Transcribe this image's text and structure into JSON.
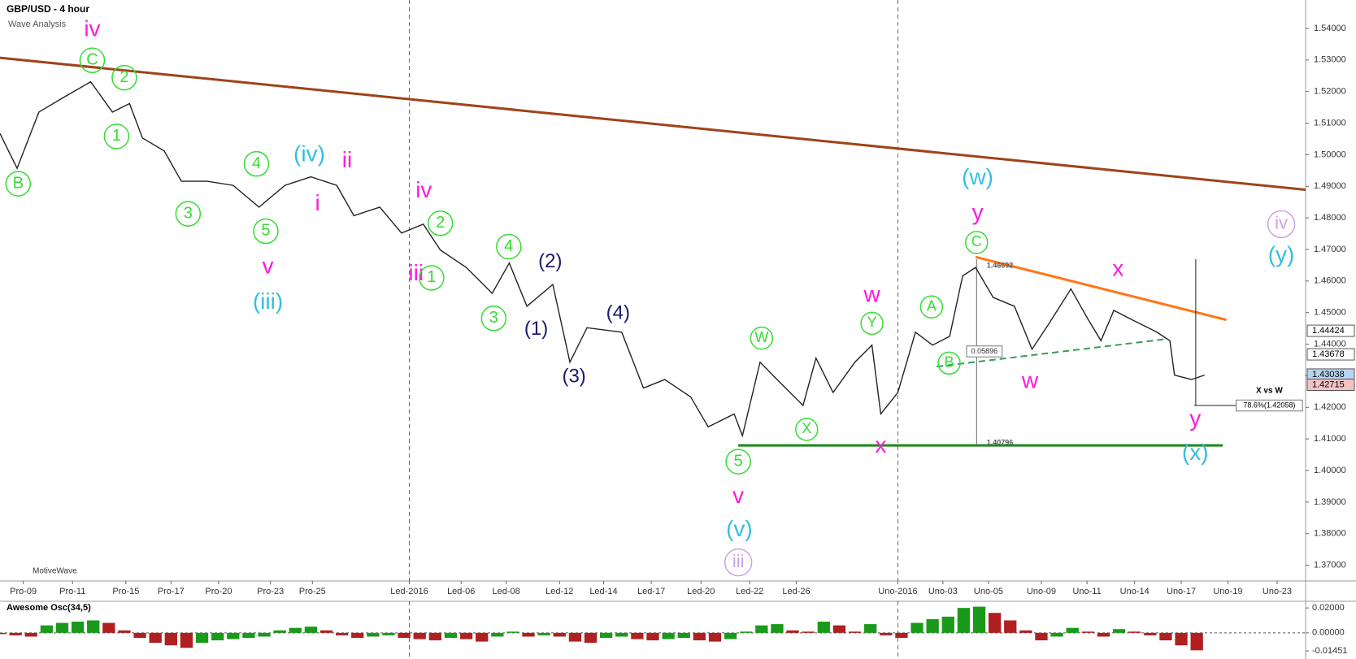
{
  "chart_data": {
    "type": "line",
    "title": "GBP/USD - 4 hour",
    "subtitle": "Wave Analysis",
    "watermark": "MotiveWave",
    "xlim": [
      0,
      252
    ],
    "xticks": [
      {
        "value": 4.5,
        "label": "Pro-09"
      },
      {
        "value": 14,
        "label": "Pro-11"
      },
      {
        "value": 24.3,
        "label": "Pro-15"
      },
      {
        "value": 33,
        "label": "Pro-17"
      },
      {
        "value": 42.2,
        "label": "Pro-20"
      },
      {
        "value": 52.2,
        "label": "Pro-23"
      },
      {
        "value": 60.3,
        "label": "Pro-25"
      },
      {
        "value": 79,
        "label": "Led-2016"
      },
      {
        "value": 89,
        "label": "Led-06"
      },
      {
        "value": 97.7,
        "label": "Led-08"
      },
      {
        "value": 108,
        "label": "Led-12"
      },
      {
        "value": 116.5,
        "label": "Led-14"
      },
      {
        "value": 125.7,
        "label": "Led-17"
      },
      {
        "value": 135.3,
        "label": "Led-20"
      },
      {
        "value": 144.7,
        "label": "Led-22"
      },
      {
        "value": 153.7,
        "label": "Led-26"
      },
      {
        "value": 173.3,
        "label": "Uno-2016"
      },
      {
        "value": 182,
        "label": "Uno-03"
      },
      {
        "value": 190.8,
        "label": "Uno-05"
      },
      {
        "value": 201,
        "label": "Uno-09"
      },
      {
        "value": 209.8,
        "label": "Uno-11"
      },
      {
        "value": 219,
        "label": "Uno-14"
      },
      {
        "value": 228,
        "label": "Uno-17"
      },
      {
        "value": 237,
        "label": "Uno-19"
      },
      {
        "value": 246.5,
        "label": "Uno-23"
      }
    ],
    "ylim": [
      1.365,
      1.549
    ],
    "yticks": [
      {
        "value": 1.37,
        "label": "1.37000"
      },
      {
        "value": 1.38,
        "label": "1.38000"
      },
      {
        "value": 1.39,
        "label": "1.39000"
      },
      {
        "value": 1.4,
        "label": "1.40000"
      },
      {
        "value": 1.41,
        "label": "1.41000"
      },
      {
        "value": 1.42,
        "label": "1.42000"
      },
      {
        "value": 1.43,
        "label": "1.43000"
      },
      {
        "value": 1.44,
        "label": "1.44000"
      },
      {
        "value": 1.45,
        "label": "1.45000"
      },
      {
        "value": 1.46,
        "label": "1.46000"
      },
      {
        "value": 1.47,
        "label": "1.47000"
      },
      {
        "value": 1.48,
        "label": "1.48000"
      },
      {
        "value": 1.49,
        "label": "1.49000"
      },
      {
        "value": 1.5,
        "label": "1.50000"
      },
      {
        "value": 1.51,
        "label": "1.51000"
      },
      {
        "value": 1.52,
        "label": "1.52000"
      },
      {
        "value": 1.53,
        "label": "1.53000"
      },
      {
        "value": 1.54,
        "label": "1.54000"
      }
    ],
    "series": [
      {
        "name": "GBP/USD",
        "color": "#222222",
        "x": [
          0,
          3.3,
          7.5,
          11.7,
          17.5,
          21.7,
          25,
          27.5,
          31.7,
          35,
          40,
          45,
          50,
          55,
          60,
          65,
          68.3,
          73.3,
          77.5,
          81.7,
          85,
          90,
          95,
          98.3,
          101.7,
          106.7,
          110,
          113.3,
          120,
          124.2,
          128.3,
          133.3,
          136.7,
          141.7,
          143.3,
          146.7,
          150,
          155,
          157.5,
          160.8,
          165,
          168.3,
          170,
          173.3,
          176.7,
          180,
          183.3,
          185.8,
          188.3,
          191.7,
          195.8,
          199.2,
          202.5,
          206.7,
          210,
          212.5,
          215,
          218.3,
          223.3,
          225.8,
          226.7,
          230,
          232.5
        ],
        "values": [
          1.5067,
          1.4957,
          1.5135,
          1.5176,
          1.5231,
          1.5135,
          1.5162,
          1.5053,
          1.5012,
          1.4916,
          1.4916,
          1.4903,
          1.4834,
          1.4903,
          1.493,
          1.4903,
          1.4807,
          1.4834,
          1.4752,
          1.478,
          1.4698,
          1.4643,
          1.4561,
          1.4657,
          1.452,
          1.4589,
          1.4343,
          1.4452,
          1.4438,
          1.4261,
          1.4288,
          1.4233,
          1.4138,
          1.4179,
          1.411,
          1.4343,
          1.4288,
          1.4206,
          1.4356,
          1.4247,
          1.4343,
          1.4397,
          1.4179,
          1.4247,
          1.4438,
          1.4397,
          1.4425,
          1.4616,
          1.4643,
          1.4548,
          1.452,
          1.4384,
          1.4466,
          1.4575,
          1.4479,
          1.4411,
          1.4507,
          1.4479,
          1.4438,
          1.4411,
          1.4302,
          1.4288,
          1.4302
        ]
      }
    ],
    "lines": [
      {
        "x": [
          0,
          252
        ],
        "y": [
          1.5307,
          1.4889
        ],
        "color": "#a0421a",
        "width": 3
      },
      {
        "x": [
          188.3,
          236.7
        ],
        "y": [
          1.4676,
          1.4477
        ],
        "color": "#ff7518",
        "width": 3
      },
      {
        "x": [
          180.8,
          225
        ],
        "y": [
          1.4329,
          1.4416
        ],
        "color": "#3a9a5a",
        "width": 2,
        "dashed": true
      },
      {
        "x": [
          142.5,
          236
        ],
        "y": [
          1.40796,
          1.40796
        ],
        "color": "#1a8a1a",
        "width": 3
      },
      {
        "x": [
          230.8,
          230.8
        ],
        "y": [
          1.4669,
          1.4206
        ],
        "color": "#222222",
        "width": 1
      },
      {
        "x": [
          230.5,
          239.7
        ],
        "y": [
          1.42058,
          1.42058
        ],
        "color": "#222222",
        "width": 1
      },
      {
        "x": [
          188.5,
          188.5
        ],
        "y": [
          1.4669,
          1.40796
        ],
        "color": "#666666",
        "width": 1
      }
    ],
    "vlines": [
      79,
      173.3
    ],
    "price_labels": [
      {
        "value": 1.44424,
        "color": "#ffffff"
      },
      {
        "value": 1.43678,
        "color": "#ffffff"
      },
      {
        "value": 1.43038,
        "color": "#b8d4f0"
      },
      {
        "value": 1.42715,
        "color": "#f4c2c2"
      }
    ],
    "notes": [
      {
        "text": "iv",
        "x": 17.8,
        "y": 1.5395,
        "color": "#ff1ad9",
        "size": 28
      },
      {
        "text": "v",
        "x": 51.7,
        "y": 1.4643,
        "color": "#ff1ad9",
        "size": 28
      },
      {
        "text": "i",
        "x": 61.3,
        "y": 1.4843,
        "color": "#ff1ad9",
        "size": 28
      },
      {
        "text": "ii",
        "x": 67,
        "y": 1.4979,
        "color": "#ff1ad9",
        "size": 28
      },
      {
        "text": "iv",
        "x": 81.8,
        "y": 1.4884,
        "color": "#ff1ad9",
        "size": 28
      },
      {
        "text": "iii",
        "x": 80.3,
        "y": 1.4621,
        "color": "#ff1ad9",
        "size": 28
      },
      {
        "text": "v",
        "x": 142.5,
        "y": 1.3916,
        "color": "#ff1ad9",
        "size": 28
      },
      {
        "text": "w",
        "x": 168.3,
        "y": 1.4553,
        "color": "#ff1ad9",
        "size": 28
      },
      {
        "text": "x",
        "x": 170,
        "y": 1.4075,
        "color": "#ff1ad9",
        "size": 28
      },
      {
        "text": "y",
        "x": 188.7,
        "y": 1.4813,
        "color": "#ff1ad9",
        "size": 28
      },
      {
        "text": "x",
        "x": 215.8,
        "y": 1.4635,
        "color": "#ff1ad9",
        "size": 28
      },
      {
        "text": "w",
        "x": 198.8,
        "y": 1.428,
        "color": "#ff1ad9",
        "size": 28
      },
      {
        "text": "y",
        "x": 230.7,
        "y": 1.416,
        "color": "#ff1ad9",
        "size": 28
      },
      {
        "text": "(iii)",
        "x": 51.7,
        "y": 1.4531,
        "color": "#33bfdf",
        "size": 28
      },
      {
        "text": "(iv)",
        "x": 59.7,
        "y": 1.4998,
        "color": "#33bfdf",
        "size": 28
      },
      {
        "text": "(v)",
        "x": 142.7,
        "y": 1.381,
        "color": "#33bfdf",
        "size": 28
      },
      {
        "text": "(w)",
        "x": 188.7,
        "y": 1.4925,
        "color": "#33bfdf",
        "size": 28
      },
      {
        "text": "(y)",
        "x": 247.3,
        "y": 1.4679,
        "color": "#33bfdf",
        "size": 28
      },
      {
        "text": "(x)",
        "x": 230.7,
        "y": 1.4053,
        "color": "#33bfdf",
        "size": 28
      },
      {
        "text": "iii",
        "x": 142.5,
        "y": 1.3709,
        "color": "#c8a2e8",
        "size": 22,
        "circled": true
      },
      {
        "text": "iv",
        "x": 247.3,
        "y": 1.478,
        "color": "#c8a2e8",
        "size": 22,
        "circled": true
      },
      {
        "text": "B",
        "x": 3.5,
        "y": 1.4908,
        "color": "#33dd33",
        "size": 20,
        "circled": true
      },
      {
        "text": "C",
        "x": 17.8,
        "y": 1.5299,
        "color": "#33dd33",
        "size": 20,
        "circled": true
      },
      {
        "text": "2",
        "x": 24,
        "y": 1.5244,
        "color": "#33dd33",
        "size": 20,
        "circled": true
      },
      {
        "text": "1",
        "x": 22.5,
        "y": 1.5058,
        "color": "#33dd33",
        "size": 20,
        "circled": true
      },
      {
        "text": "3",
        "x": 36.3,
        "y": 1.4813,
        "color": "#33dd33",
        "size": 20,
        "circled": true
      },
      {
        "text": "4",
        "x": 49.5,
        "y": 1.4971,
        "color": "#33dd33",
        "size": 20,
        "circled": true
      },
      {
        "text": "5",
        "x": 51.3,
        "y": 1.4758,
        "color": "#33dd33",
        "size": 20,
        "circled": true
      },
      {
        "text": "2",
        "x": 85,
        "y": 1.4783,
        "color": "#33dd33",
        "size": 20,
        "circled": true
      },
      {
        "text": "1",
        "x": 83.3,
        "y": 1.461,
        "color": "#33dd33",
        "size": 20,
        "circled": true
      },
      {
        "text": "4",
        "x": 98.2,
        "y": 1.4709,
        "color": "#33dd33",
        "size": 20,
        "circled": true
      },
      {
        "text": "3",
        "x": 95.3,
        "y": 1.4482,
        "color": "#33dd33",
        "size": 20,
        "circled": true
      },
      {
        "text": "5",
        "x": 142.5,
        "y": 1.4028,
        "color": "#33dd33",
        "size": 20,
        "circled": true
      },
      {
        "text": "W",
        "x": 147,
        "y": 1.4419,
        "color": "#33dd33",
        "size": 18,
        "circled": true
      },
      {
        "text": "X",
        "x": 155.7,
        "y": 1.413,
        "color": "#33dd33",
        "size": 18,
        "circled": true
      },
      {
        "text": "Y",
        "x": 168.3,
        "y": 1.4466,
        "color": "#33dd33",
        "size": 18,
        "circled": true
      },
      {
        "text": "A",
        "x": 179.8,
        "y": 1.4518,
        "color": "#33dd33",
        "size": 18,
        "circled": true
      },
      {
        "text": "B",
        "x": 183.2,
        "y": 1.434,
        "color": "#33dd33",
        "size": 18,
        "circled": true
      },
      {
        "text": "C",
        "x": 188.5,
        "y": 1.4722,
        "color": "#33dd33",
        "size": 18,
        "circled": true
      },
      {
        "text": "(2)",
        "x": 106.2,
        "y": 1.466,
        "color": "#1a1a6e",
        "size": 24
      },
      {
        "text": "(1)",
        "x": 103.5,
        "y": 1.4446,
        "color": "#1a1a6e",
        "size": 24
      },
      {
        "text": "(4)",
        "x": 119.3,
        "y": 1.4496,
        "color": "#1a1a6e",
        "size": 24
      },
      {
        "text": "(3)",
        "x": 110.8,
        "y": 1.4296,
        "color": "#1a1a6e",
        "size": 24
      },
      {
        "text": "1.46692",
        "x": 193,
        "y": 1.4648,
        "color": "#555555",
        "size": 9
      },
      {
        "text": "0.05896",
        "x": 190,
        "y": 1.4377,
        "color": "#333333",
        "size": 9,
        "boxed": true
      },
      {
        "text": "1.40796",
        "x": 193,
        "y": 1.4087,
        "color": "#555555",
        "size": 9
      },
      {
        "text": "X vs W",
        "x": 245,
        "y": 1.4252,
        "color": "#000000",
        "size": 10
      },
      {
        "text": "78.6%(1.42058)",
        "x": 245,
        "y": 1.42058,
        "color": "#000000",
        "size": 9,
        "boxed": true
      }
    ],
    "oscillator": {
      "title": "Awesome Osc(34,5)",
      "up_color": "#1a9a1a",
      "down_color": "#b02020",
      "ylim": [
        -0.019,
        0.024
      ],
      "yticks": [
        {
          "value": 0.02,
          "label": "0.02000"
        },
        {
          "value": 0,
          "label": "0.00000"
        },
        {
          "value": -0.01451,
          "label": "-0.01451"
        }
      ],
      "x": [
        0,
        3,
        6,
        9,
        12,
        15,
        18,
        21,
        24,
        27,
        30,
        33,
        36,
        39,
        42,
        45,
        48,
        51,
        54,
        57,
        60,
        63,
        66,
        69,
        72,
        75,
        78,
        81,
        84,
        87,
        90,
        93,
        96,
        99,
        102,
        105,
        108,
        111,
        114,
        117,
        120,
        123,
        126,
        129,
        132,
        135,
        138,
        141,
        144,
        147,
        150,
        153,
        156,
        159,
        162,
        165,
        168,
        171,
        174,
        177,
        180,
        183,
        186,
        189,
        192,
        195,
        198,
        201,
        204,
        207,
        210,
        213,
        216,
        219,
        222,
        225,
        228,
        231
      ],
      "values": [
        -0.001,
        -0.002,
        -0.003,
        0.006,
        0.008,
        0.009,
        0.01,
        0.008,
        0.002,
        -0.004,
        -0.008,
        -0.01,
        -0.012,
        -0.008,
        -0.006,
        -0.005,
        -0.004,
        -0.003,
        0.002,
        0.004,
        0.005,
        0.002,
        -0.002,
        -0.004,
        -0.003,
        -0.002,
        -0.004,
        -0.005,
        -0.006,
        -0.004,
        -0.005,
        -0.007,
        -0.003,
        0.001,
        -0.003,
        -0.002,
        -0.003,
        -0.007,
        -0.008,
        -0.004,
        -0.003,
        -0.005,
        -0.006,
        -0.005,
        -0.004,
        -0.006,
        -0.007,
        -0.005,
        0.001,
        0.006,
        0.007,
        0.002,
        0.001,
        0.009,
        0.006,
        0.001,
        0.007,
        -0.002,
        -0.004,
        0.008,
        0.011,
        0.013,
        0.02,
        0.021,
        0.016,
        0.01,
        0.002,
        -0.006,
        -0.003,
        0.004,
        0.001,
        -0.003,
        0.003,
        0.001,
        -0.002,
        -0.006,
        -0.01,
        -0.014
      ]
    }
  }
}
